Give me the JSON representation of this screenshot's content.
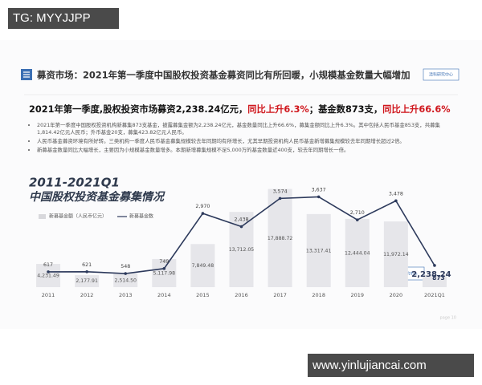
{
  "watermarks": [
    "TG: MYYJJPP",
    "www.yinlujiancai.com"
  ],
  "header": {
    "title": "募资市场：2021年第一季度中国股权投资基金募资同比有所回暖，小规模基金数量大幅增加",
    "logo": "清科研究中心"
  },
  "subheading": [
    "2021年第一季度,股权投资市场募资2,238.24亿元，",
    "同比上升6.3%",
    "；基金数873支，",
    "同比上升66.6%"
  ],
  "bullets": [
    "2021年第一季度中国股权投资机构新募集873支基金，披露募集金额为2,238.24亿元，基金数量同比上升66.6%，募集金额同比上升6.3%。其中包括人民币基金853支，共募集1,814.42亿元人民币；外币基金20支，募集423.82亿元人民币。",
    "人民币基金募资环境有所好转。三类机构一季度人民币基金募集规模较去年同期均有所增长，尤其早期投资机构人民币基金新增募集规模较去年同期增长超过2倍。",
    "新募基金数量同比大幅增长，主要因为小规模基金数量增多。本期新增募集规模不足5,000万的基金数量近400支，较去年同期增长一倍。"
  ],
  "chart_data": {
    "type": "bar",
    "title": "2011-2021Q1",
    "subtitle": "中国股权投资基金募集情况",
    "categories": [
      "2011",
      "2012",
      "2013",
      "2014",
      "2015",
      "2016",
      "2017",
      "2018",
      "2019",
      "2020",
      "2021Q1"
    ],
    "series": [
      {
        "name": "新募基金额（人民币亿元）",
        "type": "bar",
        "color": "#e6e6ea",
        "values": [
          4231.49,
          2177.91,
          2514.5,
          5117.98,
          7849.48,
          13712.05,
          17888.72,
          13317.41,
          12444.04,
          11972.14,
          2238.24
        ],
        "value_labels": [
          "4,231.49",
          "2,177.91",
          "2,514.50",
          "5,117.98",
          "7,849.48",
          "13,712.05",
          "17,888.72",
          "13,317.41",
          "12,444.04",
          "11,972.14",
          "2,238.24"
        ]
      },
      {
        "name": "新募基金数",
        "type": "line",
        "axis": "y2",
        "color": "#2d3a5c",
        "values": [
          617,
          621,
          548,
          749,
          2970,
          2438,
          3574,
          3637,
          2710,
          3478,
          873
        ],
        "value_labels": [
          "617",
          "621",
          "548",
          "749",
          "2,970",
          "2,438",
          "3,574",
          "3,637",
          "2,710",
          "3,478",
          "873"
        ]
      }
    ],
    "ylim": [
      0,
      19000
    ],
    "y2lim": [
      0,
      4200
    ]
  },
  "footer": {
    "page": "page 10"
  }
}
